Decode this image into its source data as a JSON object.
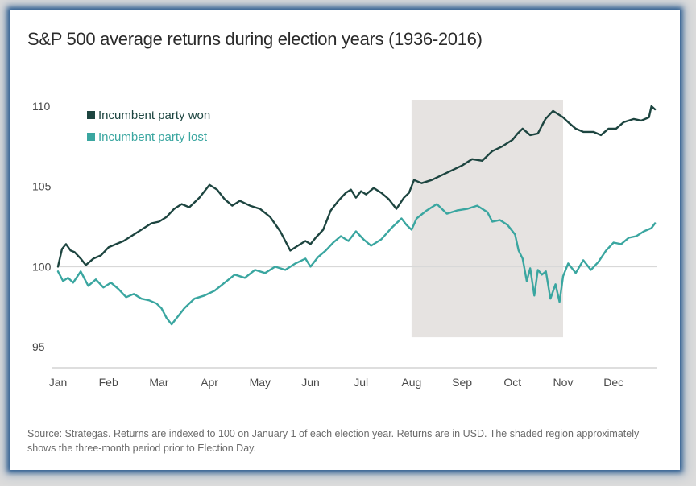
{
  "chart_data": {
    "type": "line",
    "title": "S&P 500 average returns during election years (1936-2016)",
    "source": "Source: Strategas. Returns are indexed to 100 on January 1 of each election year. Returns are in USD. The shaded region approximately shows the three-month period prior to Election Day.",
    "xlabel": "",
    "ylabel": "",
    "x_ticks": [
      "Jan",
      "Feb",
      "Mar",
      "Apr",
      "May",
      "Jun",
      "Jul",
      "Aug",
      "Sep",
      "Oct",
      "Nov",
      "Dec"
    ],
    "y_ticks": [
      95,
      100,
      105,
      110
    ],
    "xlim": [
      0,
      11.85
    ],
    "ylim": [
      93.9,
      110.6
    ],
    "reference_line": 100,
    "shaded_region": {
      "x": [
        7,
        10
      ],
      "y": [
        95.6,
        110.4
      ]
    },
    "legend_position": "top-left",
    "colors": {
      "won": "#1d4540",
      "lost": "#3aa6a0",
      "shade": "#e6e3e1",
      "reference": "#d8d8d8"
    },
    "series": [
      {
        "name": "Incumbent party won",
        "x": [
          0,
          0.08,
          0.16,
          0.25,
          0.33,
          0.45,
          0.55,
          0.7,
          0.85,
          1.0,
          1.15,
          1.3,
          1.5,
          1.7,
          1.85,
          2.0,
          2.15,
          2.3,
          2.45,
          2.6,
          2.8,
          3.0,
          3.15,
          3.3,
          3.45,
          3.6,
          3.8,
          4.0,
          4.2,
          4.4,
          4.6,
          4.75,
          4.9,
          5.0,
          5.1,
          5.25,
          5.4,
          5.55,
          5.7,
          5.8,
          5.9,
          6.0,
          6.1,
          6.25,
          6.4,
          6.55,
          6.7,
          6.85,
          6.95,
          7.05,
          7.2,
          7.4,
          7.6,
          7.8,
          8.0,
          8.2,
          8.4,
          8.6,
          8.8,
          9.0,
          9.1,
          9.2,
          9.35,
          9.5,
          9.65,
          9.8,
          9.95,
          10.0,
          10.1,
          10.25,
          10.4,
          10.6,
          10.75,
          10.9,
          11.05,
          11.2,
          11.4,
          11.55,
          11.7,
          11.75,
          11.82
        ],
        "values": [
          100.0,
          101.1,
          101.4,
          101.0,
          100.9,
          100.5,
          100.1,
          100.5,
          100.7,
          101.2,
          101.4,
          101.6,
          102.0,
          102.4,
          102.7,
          102.8,
          103.1,
          103.6,
          103.9,
          103.7,
          104.3,
          105.1,
          104.8,
          104.2,
          103.8,
          104.1,
          103.8,
          103.6,
          103.1,
          102.2,
          101.0,
          101.3,
          101.6,
          101.4,
          101.8,
          102.3,
          103.5,
          104.1,
          104.6,
          104.8,
          104.3,
          104.7,
          104.5,
          104.9,
          104.6,
          104.2,
          103.6,
          104.3,
          104.6,
          105.4,
          105.2,
          105.4,
          105.7,
          106.0,
          106.3,
          106.7,
          106.6,
          107.2,
          107.5,
          107.9,
          108.3,
          108.6,
          108.2,
          108.3,
          109.2,
          109.7,
          109.4,
          109.3,
          109.0,
          108.6,
          108.4,
          108.4,
          108.2,
          108.6,
          108.6,
          109.0,
          109.2,
          109.1,
          109.3,
          110.0,
          109.8
        ]
      },
      {
        "name": "Incumbent party lost",
        "x": [
          0,
          0.1,
          0.2,
          0.3,
          0.45,
          0.6,
          0.75,
          0.9,
          1.05,
          1.2,
          1.35,
          1.5,
          1.65,
          1.8,
          1.95,
          2.05,
          2.15,
          2.25,
          2.35,
          2.5,
          2.7,
          2.9,
          3.1,
          3.3,
          3.5,
          3.7,
          3.9,
          4.1,
          4.3,
          4.5,
          4.7,
          4.9,
          5.0,
          5.15,
          5.3,
          5.45,
          5.6,
          5.75,
          5.9,
          6.05,
          6.2,
          6.4,
          6.6,
          6.8,
          6.9,
          7.0,
          7.1,
          7.3,
          7.5,
          7.7,
          7.9,
          8.1,
          8.3,
          8.5,
          8.6,
          8.75,
          8.9,
          9.0,
          9.05,
          9.12,
          9.2,
          9.28,
          9.35,
          9.43,
          9.5,
          9.58,
          9.66,
          9.75,
          9.85,
          9.93,
          10.0,
          10.1,
          10.25,
          10.4,
          10.55,
          10.7,
          10.85,
          11.0,
          11.15,
          11.3,
          11.45,
          11.6,
          11.75,
          11.82
        ],
        "values": [
          99.7,
          99.1,
          99.3,
          99.0,
          99.7,
          98.8,
          99.2,
          98.7,
          99.0,
          98.6,
          98.1,
          98.3,
          98.0,
          97.9,
          97.7,
          97.4,
          96.8,
          96.4,
          96.8,
          97.4,
          98.0,
          98.2,
          98.5,
          99.0,
          99.5,
          99.3,
          99.8,
          99.6,
          100.0,
          99.8,
          100.2,
          100.5,
          100.0,
          100.6,
          101.0,
          101.5,
          101.9,
          101.6,
          102.2,
          101.7,
          101.3,
          101.7,
          102.4,
          103.0,
          102.6,
          102.3,
          103.0,
          103.5,
          103.9,
          103.3,
          103.5,
          103.6,
          103.8,
          103.4,
          102.8,
          102.9,
          102.6,
          102.2,
          102.0,
          101.0,
          100.5,
          99.1,
          99.9,
          98.2,
          99.8,
          99.5,
          99.7,
          98.0,
          98.9,
          97.8,
          99.4,
          100.2,
          99.6,
          100.4,
          99.8,
          100.3,
          101.0,
          101.5,
          101.4,
          101.8,
          101.9,
          102.2,
          102.4,
          102.7
        ]
      }
    ]
  }
}
